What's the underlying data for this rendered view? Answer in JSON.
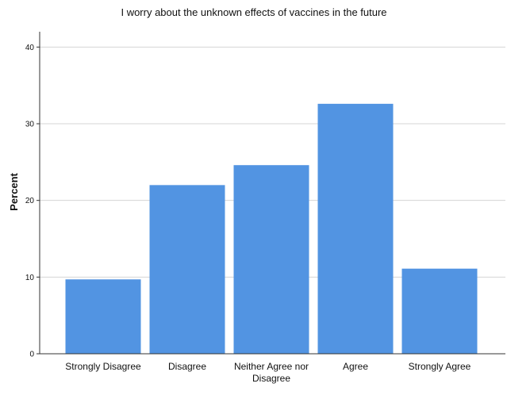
{
  "chart_data": {
    "type": "bar",
    "title": "I worry about the unknown effects of vaccines in the future",
    "xlabel": "",
    "ylabel": "Percent",
    "categories": [
      [
        "Strongly Disagree"
      ],
      [
        "Disagree"
      ],
      [
        "Neither Agree nor",
        "Disagree"
      ],
      [
        "Agree"
      ],
      [
        "Strongly Agree"
      ]
    ],
    "values": [
      9.7,
      22.0,
      24.6,
      32.6,
      11.1
    ],
    "ylim": [
      0,
      42
    ],
    "yticks": [
      0,
      10,
      20,
      30,
      40
    ],
    "grid": true,
    "legend": "none",
    "bar_color": "#5294e2",
    "grid_color": "#d4d4d4",
    "axis_color": "#333333"
  }
}
